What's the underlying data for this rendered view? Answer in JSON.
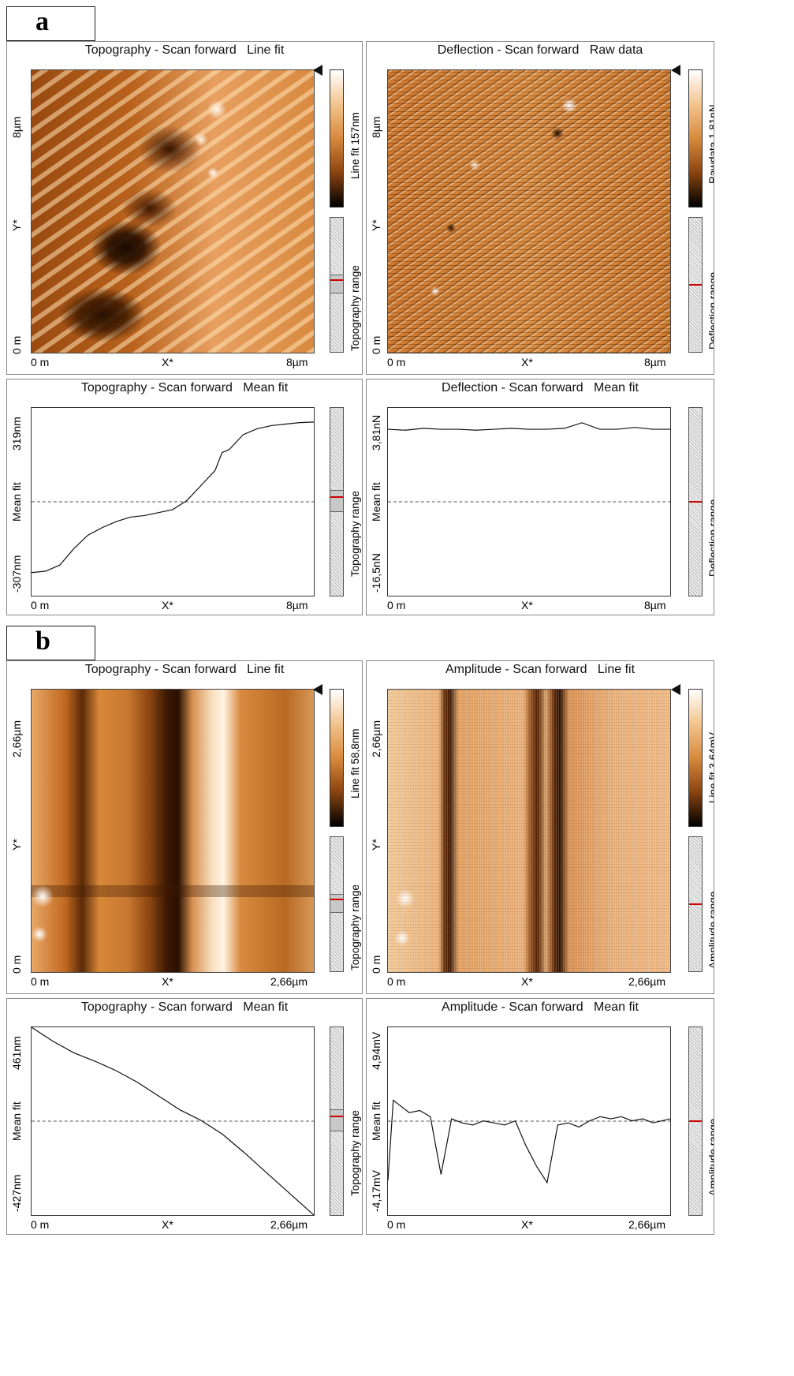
{
  "figure": {
    "a": {
      "label": "a",
      "topo_image": {
        "title": "Topography - Scan forward   Line fit",
        "y_top": "8µm",
        "y_mid": "Y*",
        "y_bottom": "0 m",
        "x_left": "0 m",
        "x_mid": "X*",
        "x_right": "8µm",
        "colorbar_label": "Line fit 157nm",
        "range_label": "Topography range",
        "range_position": 0.48
      },
      "defl_image": {
        "title": "Deflection - Scan forward   Raw data",
        "y_top": "8µm",
        "y_mid": "Y*",
        "y_bottom": "0 m",
        "x_left": "0 m",
        "x_mid": "X*",
        "x_right": "8µm",
        "colorbar_label": "Rawdata 1,81nN",
        "range_label": "Deflection range",
        "range_position": 0.5
      },
      "topo_profile": {
        "title": "Topography - Scan forward   Mean fit",
        "y_top": "319nm",
        "y_mid": "Mean fit",
        "y_bottom": "-307nm",
        "x_left": "0 m",
        "x_mid": "X*",
        "x_right": "8µm",
        "range_label": "Topography range",
        "range_position": 0.48
      },
      "defl_profile": {
        "title": "Deflection - Scan forward   Mean fit",
        "y_top": "3,81nN",
        "y_mid": "Mean fit",
        "y_bottom": "-16,5nN",
        "x_left": "0 m",
        "x_mid": "X*",
        "x_right": "8µm",
        "range_label": "Deflection range",
        "range_position": 0.5
      }
    },
    "b": {
      "label": "b",
      "topo_image": {
        "title": "Topography - Scan forward   Line fit",
        "y_top": "2,66µm",
        "y_mid": "Y*",
        "y_bottom": "0 m",
        "x_left": "0 m",
        "x_mid": "X*",
        "x_right": "2,66µm",
        "colorbar_label": "Line fit 58,8nm",
        "range_label": "Topography range",
        "range_position": 0.48
      },
      "ampl_image": {
        "title": "Amplitude - Scan forward   Line fit",
        "y_top": "2,66µm",
        "y_mid": "Y*",
        "y_bottom": "0 m",
        "x_left": "0 m",
        "x_mid": "X*",
        "x_right": "2,66µm",
        "colorbar_label": "Line fit 3,64mV",
        "range_label": "Amplitude range",
        "range_position": 0.5
      },
      "topo_profile": {
        "title": "Topography - Scan forward   Mean fit",
        "y_top": "461nm",
        "y_mid": "Mean fit",
        "y_bottom": "-427nm",
        "x_left": "0 m",
        "x_mid": "X*",
        "x_right": "2,66µm",
        "range_label": "Topography range",
        "range_position": 0.48
      },
      "ampl_profile": {
        "title": "Amplitude - Scan forward   Mean fit",
        "y_top": "4,94mV",
        "y_mid": "Mean fit",
        "y_bottom": "-4,17mV",
        "x_left": "0 m",
        "x_mid": "X*",
        "x_right": "2,66µm",
        "range_label": "Amplitude range",
        "range_position": 0.5
      }
    }
  },
  "chart_data": [
    {
      "type": "line",
      "title": "Topography - Scan forward   Mean fit",
      "xlabel": "X*",
      "ylabel": "Mean fit",
      "xlim": [
        0,
        8
      ],
      "ylim": [
        -307,
        319
      ],
      "x": [
        0,
        0.4,
        0.8,
        1.2,
        1.6,
        2.0,
        2.4,
        2.8,
        3.2,
        3.6,
        4.0,
        4.4,
        4.8,
        5.2,
        5.4,
        5.6,
        6.0,
        6.4,
        6.8,
        7.2,
        7.6,
        8.0
      ],
      "values": [
        -230,
        -225,
        -205,
        -150,
        -105,
        -80,
        -60,
        -45,
        -40,
        -30,
        -20,
        10,
        60,
        110,
        170,
        180,
        230,
        250,
        260,
        265,
        270,
        272
      ]
    },
    {
      "type": "line",
      "title": "Deflection - Scan forward   Mean fit",
      "xlabel": "X*",
      "ylabel": "Mean fit",
      "xlim": [
        0,
        8
      ],
      "ylim": [
        -16.5,
        3.81
      ],
      "x": [
        0,
        0.5,
        1,
        1.5,
        2,
        2.5,
        3,
        3.5,
        4,
        4.5,
        5,
        5.5,
        6,
        6.5,
        7,
        7.5,
        8
      ],
      "values": [
        1.5,
        1.4,
        1.6,
        1.5,
        1.5,
        1.4,
        1.5,
        1.6,
        1.5,
        1.5,
        1.6,
        2.2,
        1.5,
        1.5,
        1.7,
        1.5,
        1.5
      ]
    },
    {
      "type": "line",
      "title": "Topography - Scan forward   Mean fit",
      "xlabel": "X*",
      "ylabel": "Mean fit",
      "xlim": [
        0,
        2.66
      ],
      "ylim": [
        -427,
        461
      ],
      "x": [
        0,
        0.2,
        0.4,
        0.6,
        0.8,
        1.0,
        1.2,
        1.4,
        1.6,
        1.8,
        2.0,
        2.2,
        2.4,
        2.66
      ],
      "values": [
        461,
        395,
        340,
        300,
        255,
        200,
        135,
        70,
        20,
        -45,
        -130,
        -220,
        -310,
        -427
      ]
    },
    {
      "type": "line",
      "title": "Amplitude - Scan forward   Mean fit",
      "xlabel": "X*",
      "ylabel": "Mean fit",
      "xlim": [
        0,
        2.66
      ],
      "ylim": [
        -4.17,
        4.94
      ],
      "x": [
        0,
        0.05,
        0.1,
        0.2,
        0.3,
        0.4,
        0.5,
        0.6,
        0.7,
        0.8,
        0.9,
        1.0,
        1.1,
        1.2,
        1.3,
        1.4,
        1.5,
        1.6,
        1.7,
        1.8,
        1.9,
        2.0,
        2.1,
        2.2,
        2.3,
        2.4,
        2.5,
        2.66
      ],
      "values": [
        -2.5,
        1.4,
        1.2,
        0.8,
        0.9,
        0.6,
        -2.2,
        0.5,
        0.3,
        0.2,
        0.4,
        0.3,
        0.2,
        0.4,
        -0.8,
        -1.8,
        -2.6,
        0.2,
        0.3,
        0.1,
        0.4,
        0.6,
        0.5,
        0.6,
        0.4,
        0.5,
        0.3,
        0.5
      ]
    }
  ]
}
